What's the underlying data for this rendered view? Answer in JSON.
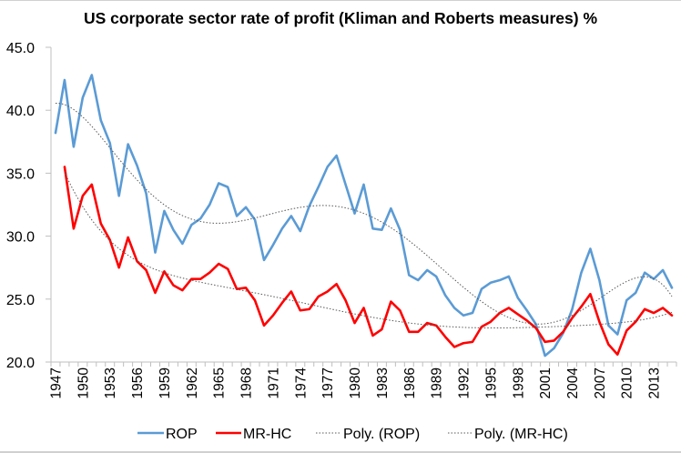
{
  "chart_data": {
    "type": "line",
    "title": "US corporate sector rate of profit (Kliman and Roberts measures) %",
    "xlabel": "",
    "ylabel": "",
    "ylim": [
      20.0,
      45.0
    ],
    "yticks": [
      "20.0",
      "25.0",
      "30.0",
      "35.0",
      "40.0",
      "45.0"
    ],
    "ytick_values": [
      20,
      25,
      30,
      35,
      40,
      45
    ],
    "grid": false,
    "legend_position": "bottom",
    "x": [
      1947,
      1948,
      1949,
      1950,
      1951,
      1952,
      1953,
      1954,
      1955,
      1956,
      1957,
      1958,
      1959,
      1960,
      1961,
      1962,
      1963,
      1964,
      1965,
      1966,
      1967,
      1968,
      1969,
      1970,
      1971,
      1972,
      1973,
      1974,
      1975,
      1976,
      1977,
      1978,
      1979,
      1980,
      1981,
      1982,
      1983,
      1984,
      1985,
      1986,
      1987,
      1988,
      1989,
      1990,
      1991,
      1992,
      1993,
      1994,
      1995,
      1996,
      1997,
      1998,
      1999,
      2000,
      2001,
      2002,
      2003,
      2004,
      2005,
      2006,
      2007,
      2008,
      2009,
      2010,
      2011,
      2012,
      2013,
      2014,
      2015
    ],
    "xtick_labels": [
      "1947",
      "1950",
      "1953",
      "1956",
      "1959",
      "1962",
      "1965",
      "1968",
      "1971",
      "1974",
      "1977",
      "1980",
      "1983",
      "1986",
      "1989",
      "1992",
      "1995",
      "1998",
      "2001",
      "2004",
      "2007",
      "2010",
      "2013"
    ],
    "series": [
      {
        "name": "ROP",
        "color": "#5B9BD5",
        "style": "solid",
        "values": [
          38.2,
          42.4,
          37.1,
          41.0,
          42.8,
          39.2,
          37.4,
          33.2,
          37.3,
          35.6,
          33.4,
          28.7,
          32.0,
          30.5,
          29.4,
          30.9,
          31.4,
          32.5,
          34.2,
          33.9,
          31.6,
          32.3,
          31.3,
          28.1,
          29.3,
          30.6,
          31.6,
          30.4,
          32.4,
          33.9,
          35.5,
          36.4,
          34.1,
          31.8,
          34.1,
          30.6,
          30.5,
          32.2,
          30.5,
          26.9,
          26.5,
          27.3,
          26.8,
          25.3,
          24.3,
          23.7,
          23.9,
          25.8,
          26.3,
          26.5,
          26.8,
          25.1,
          24.1,
          23.0,
          20.5,
          21.1,
          22.3,
          24.2,
          27.1,
          29.0,
          26.5,
          22.9,
          22.2,
          24.9,
          25.5,
          27.1,
          26.6,
          27.3,
          25.9
        ]
      },
      {
        "name": "MR-HC",
        "color": "#FF0000",
        "style": "solid",
        "values": [
          null,
          35.5,
          30.6,
          33.2,
          34.1,
          31.0,
          29.7,
          27.5,
          29.9,
          28.0,
          27.3,
          25.5,
          27.2,
          26.1,
          25.7,
          26.6,
          26.6,
          27.1,
          27.8,
          27.4,
          25.8,
          25.9,
          24.9,
          22.9,
          23.7,
          24.7,
          25.6,
          24.1,
          24.2,
          25.2,
          25.6,
          26.2,
          24.9,
          23.1,
          24.3,
          22.1,
          22.6,
          24.8,
          24.1,
          22.4,
          22.4,
          23.1,
          22.9,
          22.0,
          21.2,
          21.5,
          21.6,
          22.8,
          23.2,
          23.9,
          24.3,
          23.8,
          23.3,
          22.7,
          21.6,
          21.7,
          22.4,
          23.5,
          24.4,
          25.4,
          23.2,
          21.4,
          20.6,
          22.5,
          23.2,
          24.2,
          23.9,
          24.3,
          23.7
        ]
      }
    ],
    "trendlines": [
      {
        "name": "Poly. (ROP)",
        "of": "ROP",
        "kind": "polynomial",
        "order": 6,
        "color": "#595959",
        "style": "dotted"
      },
      {
        "name": "Poly. (MR-HC)",
        "of": "MR-HC",
        "kind": "polynomial",
        "order": 6,
        "color": "#595959",
        "style": "dotted"
      }
    ],
    "legend": [
      "ROP",
      "MR-HC",
      "Poly. (ROP)",
      "Poly. (MR-HC)"
    ]
  }
}
